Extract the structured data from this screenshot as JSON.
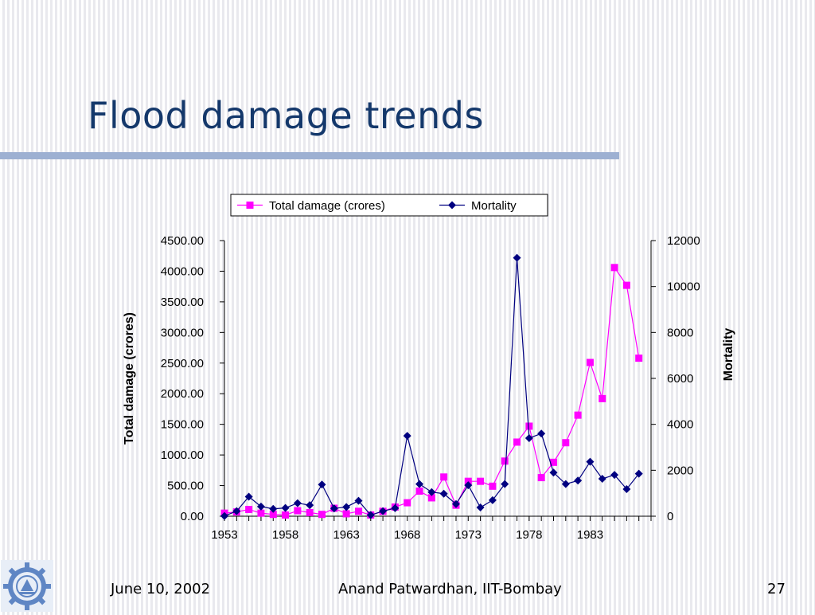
{
  "slide": {
    "title": "Flood damage trends",
    "footer_date": "June 10, 2002",
    "footer_author": "Anand Patwardhan, IIT-Bombay",
    "page_number": "27"
  },
  "colors": {
    "title": "#14386b",
    "title_rule": "#9db0d2",
    "damage_series": "#ff00ff",
    "mortality_series": "#000080"
  },
  "icons": {
    "logo": "iit-bombay-logo"
  },
  "chart_data": {
    "type": "line",
    "x": [
      1953,
      1954,
      1955,
      1956,
      1957,
      1958,
      1959,
      1960,
      1961,
      1962,
      1963,
      1964,
      1965,
      1966,
      1967,
      1968,
      1969,
      1970,
      1971,
      1972,
      1973,
      1974,
      1975,
      1976,
      1977,
      1978,
      1979,
      1980,
      1981,
      1982,
      1983,
      1984,
      1985,
      1986,
      1987,
      1988
    ],
    "x_tick_labels": [
      "1953",
      "1958",
      "1963",
      "1968",
      "1973",
      "1978",
      "1983"
    ],
    "x_tick_values": [
      1953,
      1958,
      1963,
      1968,
      1973,
      1978,
      1983
    ],
    "x_minor_ticks": true,
    "series": [
      {
        "name": "Total damage (crores)",
        "axis": "left",
        "marker": "square",
        "color": "#ff00ff",
        "values": [
          50,
          70,
          110,
          50,
          30,
          20,
          90,
          60,
          30,
          130,
          40,
          80,
          20,
          80,
          150,
          220,
          410,
          300,
          640,
          180,
          570,
          570,
          490,
          900,
          1210,
          1470,
          630,
          880,
          1200,
          1650,
          2510,
          1920,
          4060,
          3770,
          2580,
          null
        ]
      },
      {
        "name": "Mortality",
        "axis": "right",
        "marker": "diamond",
        "color": "#000080",
        "values": [
          10,
          220,
          850,
          420,
          320,
          360,
          570,
          480,
          1380,
          340,
          400,
          670,
          50,
          220,
          350,
          3500,
          1400,
          1050,
          980,
          530,
          1350,
          380,
          700,
          1400,
          11250,
          3400,
          3600,
          1900,
          1400,
          1550,
          2370,
          1630,
          1800,
          1180,
          1850,
          null
        ]
      }
    ],
    "y_left": {
      "label": "Total damage (crores)",
      "min": 0,
      "max": 4500,
      "ticks": [
        "0.00",
        "500.00",
        "1000.00",
        "1500.00",
        "2000.00",
        "2500.00",
        "3000.00",
        "3500.00",
        "4000.00",
        "4500.00"
      ]
    },
    "y_right": {
      "label": "Mortality",
      "min": 0,
      "max": 12000,
      "ticks": [
        "0",
        "2000",
        "4000",
        "6000",
        "8000",
        "10000",
        "12000"
      ]
    },
    "legend": [
      "Total damage (crores)",
      "Mortality"
    ],
    "legend_position": "top-center",
    "grid": false
  }
}
